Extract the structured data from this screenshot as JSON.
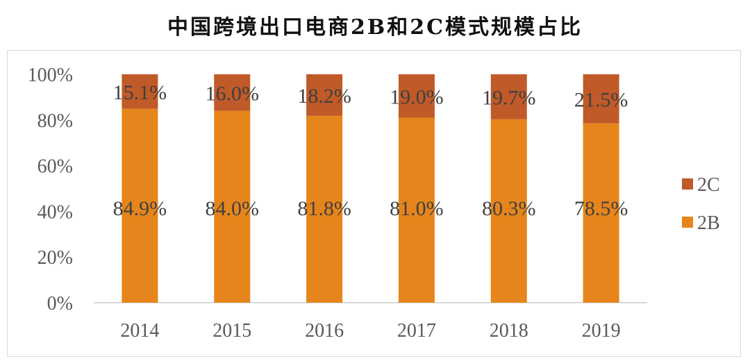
{
  "chart_data": {
    "type": "bar",
    "stacked": true,
    "title": "中国跨境出口电商2B和2C模式规模占比",
    "categories": [
      "2014",
      "2015",
      "2016",
      "2017",
      "2018",
      "2019"
    ],
    "series": [
      {
        "name": "2B",
        "values": [
          84.9,
          84.0,
          81.8,
          81.0,
          80.3,
          78.5
        ],
        "labels": [
          "84.9%",
          "84.0%",
          "81.8%",
          "81.0%",
          "80.3%",
          "78.5%"
        ],
        "color": "#E6851B"
      },
      {
        "name": "2C",
        "values": [
          15.1,
          16.0,
          18.2,
          19.0,
          19.7,
          21.5
        ],
        "labels": [
          "15.1%",
          "16.0%",
          "18.2%",
          "19.0%",
          "19.7%",
          "21.5%"
        ],
        "color": "#C05A28"
      }
    ],
    "ylim": [
      0,
      100
    ],
    "yticks": [
      "0%",
      "20%",
      "40%",
      "60%",
      "80%",
      "100%"
    ],
    "xlabel": "",
    "ylabel": "",
    "grid": false,
    "legend": {
      "placement": "right",
      "order": [
        "2C",
        "2B"
      ]
    }
  }
}
